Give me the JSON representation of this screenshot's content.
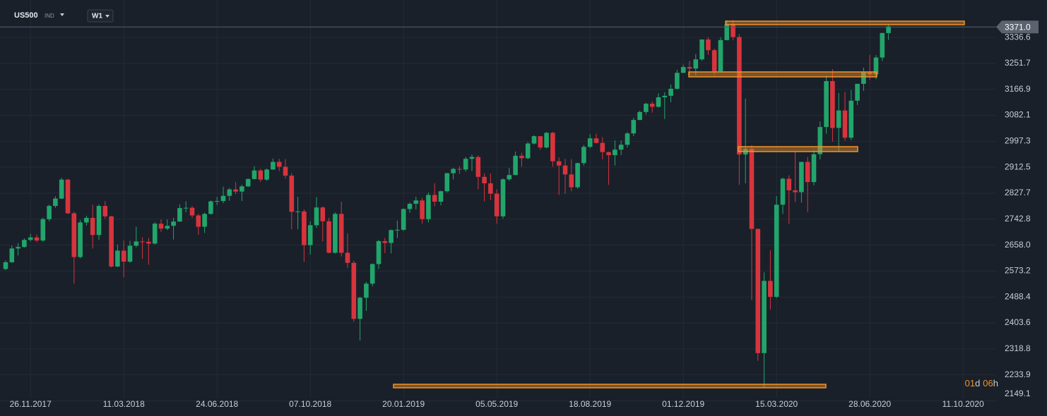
{
  "chart_data": {
    "type": "candlestick",
    "symbol": "US500",
    "symbol_type": "IND",
    "interval": "W1",
    "last_price": {
      "value": 3371.0,
      "label": "3371.0"
    },
    "countdown": {
      "days": "01",
      "days_unit": "d",
      "hours": "06",
      "hours_unit": "h"
    },
    "up_color": "#22a56b",
    "down_color": "#d8343d",
    "grid": true,
    "ylim": [
      2141,
      3459
    ],
    "yticks": [
      2149.1,
      2233.9,
      2318.8,
      2403.6,
      2488.4,
      2573.2,
      {
        "value": 2658.0,
        "label": "2658.0"
      },
      2742.8,
      2827.7,
      2912.5,
      2997.3,
      3082.1,
      3166.9,
      3251.7,
      3336.6
    ],
    "categories": [
      null,
      null,
      null,
      null,
      "26.11.2017",
      null,
      null,
      null,
      null,
      null,
      null,
      null,
      null,
      null,
      null,
      null,
      null,
      null,
      null,
      "11.03.2018",
      null,
      null,
      null,
      null,
      null,
      null,
      null,
      null,
      null,
      null,
      null,
      null,
      null,
      null,
      "24.06.2018",
      null,
      null,
      null,
      null,
      null,
      null,
      null,
      null,
      null,
      null,
      null,
      null,
      null,
      null,
      "07.10.2018",
      null,
      null,
      null,
      null,
      null,
      null,
      null,
      null,
      null,
      null,
      null,
      null,
      null,
      null,
      "20.01.2019",
      null,
      null,
      null,
      null,
      null,
      null,
      null,
      null,
      null,
      null,
      null,
      null,
      null,
      null,
      "05.05.2019",
      null,
      null,
      null,
      null,
      null,
      null,
      null,
      null,
      null,
      null,
      null,
      null,
      null,
      null,
      "18.08.2019",
      null,
      null,
      null,
      null,
      null,
      null,
      null,
      null,
      null,
      null,
      null,
      null,
      null,
      null,
      "01.12.2019",
      null,
      null,
      null,
      null,
      null,
      null,
      null,
      null,
      null,
      null,
      null,
      null,
      null,
      null,
      "15.03.2020",
      null,
      null,
      null,
      null,
      null,
      null,
      null,
      null,
      null,
      null,
      null,
      null,
      null,
      null,
      "28.06.2020",
      null,
      null,
      null,
      null,
      null,
      null,
      null,
      null,
      null,
      null,
      null,
      null,
      null,
      null,
      "11.10.2020"
    ],
    "open": [
      2580,
      2602,
      2647,
      2652,
      2675,
      2683,
      2673,
      2743,
      2786,
      2810,
      2872,
      2762,
      2619,
      2732,
      2747,
      2691,
      2786,
      2752,
      2588,
      2640,
      2604,
      2656,
      2670,
      2669,
      2663,
      2728,
      2712,
      2721,
      2735,
      2779,
      2780,
      2755,
      2718,
      2760,
      2801,
      2802,
      2819,
      2840,
      2833,
      2850,
      2874,
      2902,
      2872,
      2905,
      2930,
      2914,
      2885,
      2767,
      2768,
      2658,
      2723,
      2781,
      2736,
      2633,
      2760,
      2633,
      2600,
      2417,
      2486,
      2532,
      2596,
      2671,
      2665,
      2707,
      2708,
      2776,
      2793,
      2804,
      2743,
      2822,
      2800,
      2834,
      2893,
      2907,
      2905,
      2940,
      2946,
      2881,
      2860,
      2826,
      2752,
      2873,
      2887,
      2950,
      2942,
      2990,
      3014,
      2977,
      3025,
      2932,
      2918,
      2889,
      2847,
      2926,
      2979,
      3007,
      2992,
      2962,
      2952,
      2970,
      2986,
      3023,
      3067,
      3093,
      3120,
      3110,
      3141,
      3146,
      3169,
      3221,
      3240,
      3235,
      3265,
      3330,
      3295,
      3226,
      3328,
      3380,
      3338,
      2954,
      2972,
      2711,
      2305,
      2541,
      2489,
      2790,
      2875,
      2837,
      2831,
      2930,
      2864,
      2955,
      3044,
      3194,
      3041,
      3098,
      3009,
      3130,
      3185,
      3225,
      3216,
      3271,
      3351,
      null,
      null,
      null,
      null,
      null,
      null,
      null,
      null,
      null,
      null,
      null,
      null
    ],
    "high": [
      2608,
      2657,
      2665,
      2680,
      2695,
      2692,
      2748,
      2790,
      2818,
      2878,
      2875,
      2767,
      2740,
      2754,
      2790,
      2791,
      2802,
      2754,
      2660,
      2673,
      2672,
      2718,
      2683,
      2682,
      2733,
      2742,
      2742,
      2747,
      2791,
      2801,
      2786,
      2760,
      2764,
      2804,
      2816,
      2849,
      2845,
      2864,
      2855,
      2876,
      2916,
      2907,
      2908,
      2941,
      2940,
      2939,
      2894,
      2816,
      2775,
      2736,
      2815,
      2785,
      2747,
      2765,
      2800,
      2697,
      2607,
      2489,
      2538,
      2598,
      2675,
      2681,
      2709,
      2738,
      2778,
      2797,
      2816,
      2812,
      2830,
      2860,
      2836,
      2894,
      2911,
      2916,
      2946,
      2954,
      2951,
      2892,
      2892,
      2840,
      2876,
      2910,
      2964,
      2960,
      2995,
      3017,
      3015,
      3028,
      3028,
      2944,
      2940,
      2939,
      2927,
      2985,
      3021,
      3022,
      3011,
      2963,
      3000,
      3000,
      3028,
      3074,
      3097,
      3123,
      3128,
      3154,
      3157,
      3183,
      3231,
      3248,
      3260,
      3282,
      3330,
      3338,
      3300,
      3337,
      3393,
      3394,
      3348,
      3137,
      2985,
      2711,
      2569,
      2641,
      2818,
      2879,
      2886,
      2965,
      2930,
      2946,
      2968,
      3062,
      3211,
      3233,
      3155,
      3158,
      3165,
      3185,
      3238,
      3280,
      3279,
      3352,
      3381,
      null,
      null,
      null,
      null,
      null,
      null,
      null,
      null,
      null,
      null,
      null,
      null
    ],
    "low": [
      2576,
      2600,
      2624,
      2650,
      2670,
      2667,
      2668,
      2736,
      2780,
      2808,
      2759,
      2532,
      2615,
      2722,
      2647,
      2675,
      2744,
      2585,
      2586,
      2553,
      2600,
      2651,
      2613,
      2594,
      2660,
      2701,
      2707,
      2676,
      2734,
      2765,
      2747,
      2692,
      2698,
      2758,
      2789,
      2795,
      2803,
      2825,
      2802,
      2848,
      2872,
      2864,
      2868,
      2904,
      2900,
      2876,
      2710,
      2710,
      2603,
      2627,
      2714,
      2670,
      2631,
      2630,
      2621,
      2583,
      2408,
      2346,
      2443,
      2524,
      2580,
      2632,
      2631,
      2681,
      2704,
      2764,
      2775,
      2728,
      2732,
      2785,
      2788,
      2830,
      2873,
      2891,
      2898,
      2900,
      2840,
      2801,
      2805,
      2728,
      2744,
      2868,
      2887,
      2914,
      2939,
      2987,
      2970,
      2974,
      2914,
      2822,
      2825,
      2834,
      2842,
      2918,
      2975,
      2990,
      2938,
      2855,
      2918,
      2952,
      2977,
      3014,
      3066,
      3085,
      3091,
      3107,
      3070,
      3125,
      3166,
      3220,
      3213,
      3214,
      3260,
      3280,
      3214,
      3222,
      3327,
      3328,
      2855,
      2860,
      2478,
      2280,
      2191,
      2447,
      2485,
      2760,
      2727,
      2799,
      2797,
      2766,
      2853,
      2938,
      3022,
      2996,
      2965,
      2999,
      3001,
      3116,
      3162,
      3198,
      3200,
      3260,
      3328,
      null,
      null,
      null,
      null,
      null,
      null,
      null,
      null,
      null,
      null,
      null,
      null
    ],
    "close": [
      2602,
      2647,
      2652,
      2675,
      2683,
      2673,
      2743,
      2786,
      2810,
      2872,
      2762,
      2619,
      2732,
      2747,
      2691,
      2786,
      2752,
      2588,
      2640,
      2604,
      2656,
      2670,
      2669,
      2663,
      2728,
      2712,
      2721,
      2735,
      2779,
      2780,
      2755,
      2718,
      2760,
      2801,
      2802,
      2819,
      2840,
      2833,
      2850,
      2874,
      2902,
      2872,
      2905,
      2930,
      2914,
      2885,
      2767,
      2768,
      2658,
      2723,
      2781,
      2736,
      2633,
      2760,
      2633,
      2600,
      2417,
      2486,
      2532,
      2596,
      2671,
      2665,
      2707,
      2708,
      2776,
      2793,
      2804,
      2743,
      2822,
      2800,
      2834,
      2893,
      2907,
      2905,
      2940,
      2946,
      2881,
      2860,
      2826,
      2752,
      2873,
      2887,
      2950,
      2942,
      2990,
      3014,
      2977,
      3025,
      2932,
      2918,
      2889,
      2847,
      2926,
      2979,
      3007,
      2992,
      2962,
      2952,
      2970,
      2986,
      3023,
      3067,
      3093,
      3120,
      3110,
      3141,
      3146,
      3169,
      3221,
      3240,
      3235,
      3265,
      3330,
      3295,
      3226,
      3328,
      3380,
      3338,
      2954,
      2972,
      2711,
      2305,
      2541,
      2489,
      2790,
      2875,
      2837,
      2831,
      2930,
      2864,
      2955,
      3044,
      3194,
      3041,
      3098,
      3009,
      3130,
      3185,
      3225,
      3216,
      3271,
      3351,
      3373,
      null,
      null,
      null,
      null,
      null,
      null,
      null,
      null,
      null,
      null,
      null,
      null
    ]
  }
}
